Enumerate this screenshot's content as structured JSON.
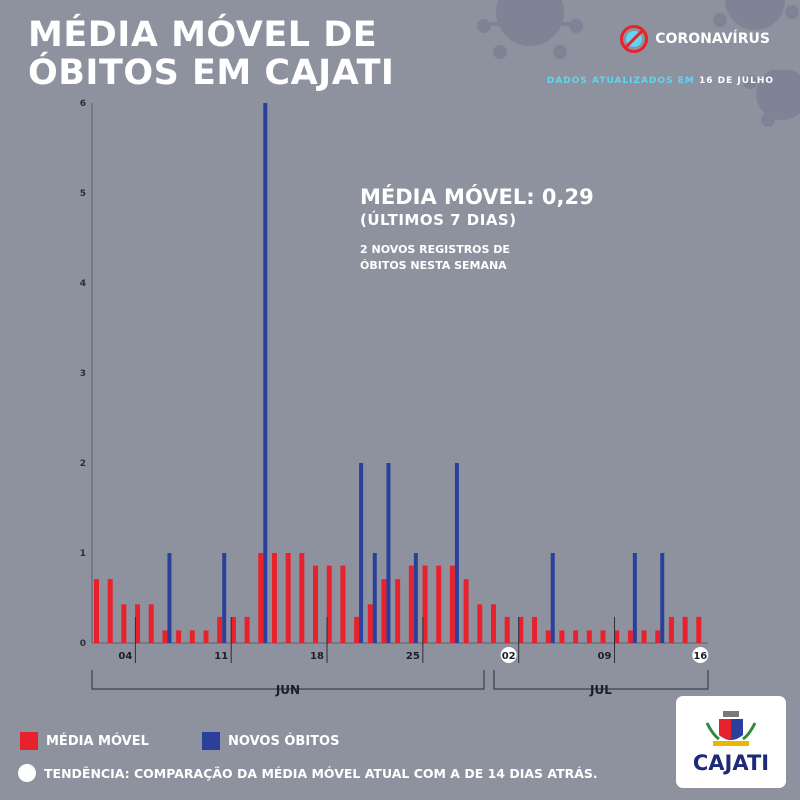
{
  "header": {
    "title_line1": "MÉDIA MÓVEL DE",
    "title_line2": "ÓBITOS EM CAJATI",
    "brand": "CORONAVÍRUS",
    "updated_label": "DADOS ATUALIZADOS EM",
    "updated_date": "16 DE JULHO"
  },
  "annotation": {
    "headline": "MÉDIA MÓVEL: 0,29",
    "subhead": "(ÚLTIMOS 7 DIAS)",
    "note": "2 NOVOS REGISTROS DE ÓBITOS NESTA SEMANA"
  },
  "legend": {
    "moving_average": "MÉDIA MÓVEL",
    "new_deaths": "NOVOS ÓBITOS",
    "trend": "TENDÊNCIA: COMPARAÇÃO DA MÉDIA MÓVEL ATUAL COM A DE 14 DIAS ATRÁS."
  },
  "logo": {
    "name": "CAJATI"
  },
  "colors": {
    "background": "#8e929f",
    "moving_average": "#e8222c",
    "new_deaths": "#2b3f9c",
    "accent": "#5fd6f2",
    "virus": "#7c8194"
  },
  "chart_data": {
    "type": "bar",
    "x_dates": [
      "02/06",
      "03/06",
      "04/06",
      "05/06",
      "06/06",
      "07/06",
      "08/06",
      "09/06",
      "10/06",
      "11/06",
      "12/06",
      "13/06",
      "14/06",
      "15/06",
      "16/06",
      "17/06",
      "18/06",
      "19/06",
      "20/06",
      "21/06",
      "22/06",
      "23/06",
      "24/06",
      "25/06",
      "26/06",
      "27/06",
      "28/06",
      "29/06",
      "30/06",
      "01/07",
      "02/07",
      "03/07",
      "04/07",
      "05/07",
      "06/07",
      "07/07",
      "08/07",
      "09/07",
      "10/07",
      "11/07",
      "12/07",
      "13/07",
      "14/07",
      "15/07",
      "16/07"
    ],
    "tick_labels": [
      {
        "date": "04/06",
        "label": "04"
      },
      {
        "date": "11/06",
        "label": "11"
      },
      {
        "date": "18/06",
        "label": "18"
      },
      {
        "date": "25/06",
        "label": "25"
      },
      {
        "date": "02/07",
        "label": "02"
      },
      {
        "date": "09/07",
        "label": "09"
      },
      {
        "date": "16/07",
        "label": "16"
      }
    ],
    "months": [
      {
        "label": "JUN",
        "from": "02/06",
        "to": "30/06"
      },
      {
        "label": "JUL",
        "from": "01/07",
        "to": "16/07"
      }
    ],
    "yticks": [
      "0",
      "1",
      "2",
      "3",
      "4",
      "5",
      "6"
    ],
    "ylim": [
      0,
      6
    ],
    "series": [
      {
        "name": "MÉDIA MÓVEL",
        "values": [
          0.71,
          0.71,
          0.43,
          0.43,
          0.43,
          0.14,
          0.14,
          0.14,
          0.14,
          0.29,
          0.29,
          0.29,
          1,
          1,
          1,
          1,
          0.86,
          0.86,
          0.86,
          0.29,
          0.43,
          0.71,
          0.71,
          0.86,
          0.86,
          0.86,
          0.86,
          0.71,
          0.43,
          0.43,
          0.29,
          0.29,
          0.29,
          0.14,
          0.14,
          0.14,
          0.14,
          0.14,
          0.14,
          0.14,
          0.14,
          0.14,
          0.29,
          0.29,
          0.29
        ]
      },
      {
        "name": "NOVOS ÓBITOS",
        "values": [
          0,
          0,
          0,
          0,
          0,
          1,
          0,
          0,
          0,
          1,
          0,
          0,
          6,
          0,
          0,
          0,
          0,
          0,
          0,
          2,
          1,
          2,
          0,
          1,
          0,
          0,
          2,
          0,
          0,
          0,
          0,
          0,
          0,
          1,
          0,
          0,
          0,
          0,
          0,
          1,
          0,
          1,
          0,
          0,
          0
        ]
      }
    ],
    "grid": false,
    "legend_position": "bottom-left"
  }
}
